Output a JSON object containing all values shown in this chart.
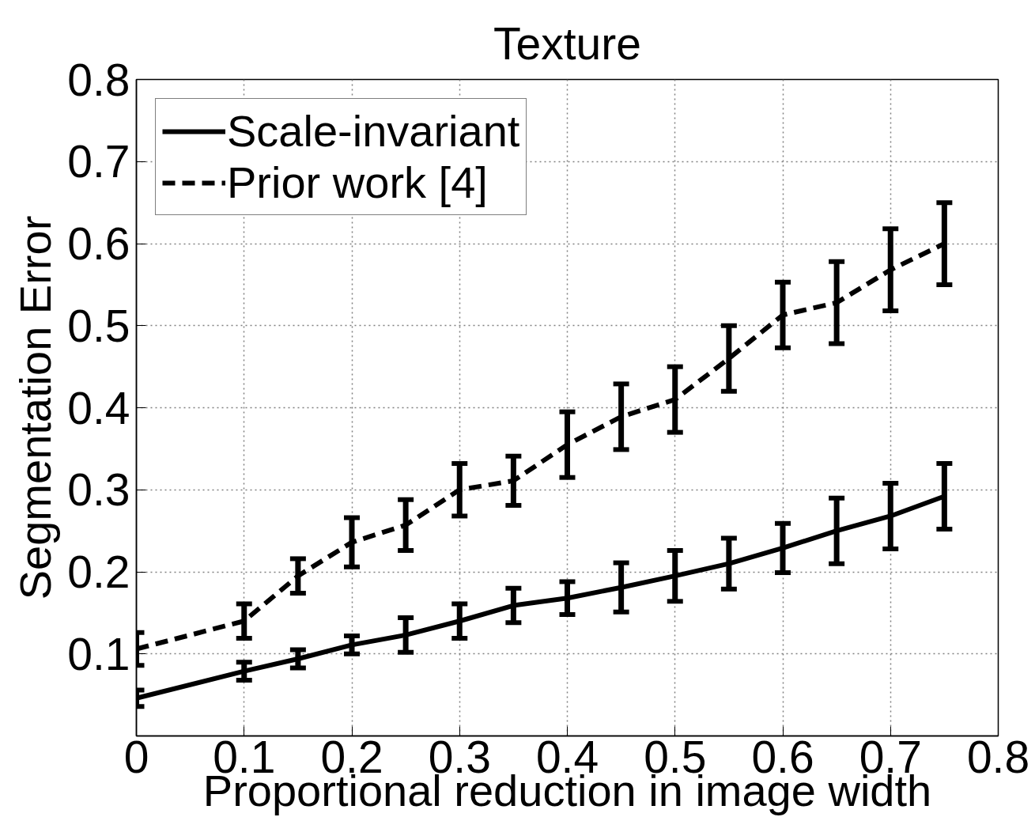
{
  "chart_data": {
    "type": "line",
    "title": "Texture",
    "xlabel": "Proportional reduction in image width",
    "ylabel": "Segmentation Error",
    "x": [
      0,
      0.1,
      0.15,
      0.2,
      0.25,
      0.3,
      0.35,
      0.4,
      0.45,
      0.5,
      0.55,
      0.6,
      0.65,
      0.7,
      0.75
    ],
    "series": [
      {
        "name": "Scale-invariant",
        "color": "#000000",
        "line_style": "solid",
        "values": [
          0.046,
          0.079,
          0.094,
          0.111,
          0.123,
          0.14,
          0.159,
          0.168,
          0.181,
          0.195,
          0.21,
          0.229,
          0.25,
          0.268,
          0.292
        ],
        "errors": [
          0.01,
          0.011,
          0.011,
          0.011,
          0.021,
          0.021,
          0.021,
          0.02,
          0.03,
          0.031,
          0.031,
          0.03,
          0.04,
          0.04,
          0.04
        ]
      },
      {
        "name": "Prior work [4]",
        "color": "#000000",
        "line_style": "dashed",
        "values": [
          0.106,
          0.14,
          0.195,
          0.236,
          0.257,
          0.3,
          0.311,
          0.355,
          0.389,
          0.41,
          0.46,
          0.513,
          0.528,
          0.568,
          0.6
        ],
        "errors": [
          0.02,
          0.021,
          0.021,
          0.03,
          0.031,
          0.032,
          0.03,
          0.04,
          0.04,
          0.04,
          0.04,
          0.04,
          0.05,
          0.05,
          0.05
        ]
      }
    ],
    "xlim": [
      0,
      0.8
    ],
    "xticks": [
      0,
      0.1,
      0.2,
      0.3,
      0.4,
      0.5,
      0.6,
      0.7,
      0.8
    ],
    "ylim": [
      0,
      0.8
    ],
    "yticks": [
      0.1,
      0.2,
      0.3,
      0.4,
      0.5,
      0.6,
      0.7,
      0.8
    ],
    "grid": true,
    "legend": "top left"
  }
}
